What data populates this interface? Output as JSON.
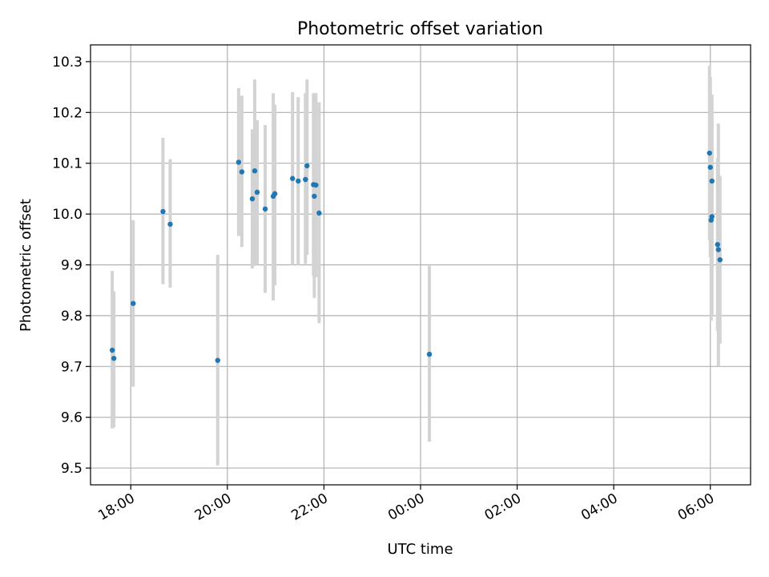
{
  "chart_data": {
    "type": "scatter",
    "title": "Photometric offset variation",
    "xlabel": "UTC time",
    "ylabel": "Photometric offset",
    "x_unit": "time of day (UTC)",
    "x_ticks": [
      "18:00",
      "20:00",
      "22:00",
      "00:00",
      "02:00",
      "04:00",
      "06:00"
    ],
    "y_ticks": [
      "9.5",
      "9.6",
      "9.7",
      "9.8",
      "9.9",
      "10.0",
      "10.1",
      "10.2",
      "10.3"
    ],
    "ylim": [
      9.467,
      10.333
    ],
    "xlim": [
      "17:10",
      "06:50"
    ],
    "grid": true,
    "colors": {
      "marker": "#1f77b4",
      "errorbar": "#d3d3d3",
      "grid": "#b0b0b0",
      "axes": "#000000"
    },
    "points": [
      {
        "x": "17:37",
        "y": 9.732,
        "lo": 9.578,
        "hi": 9.888
      },
      {
        "x": "17:39",
        "y": 9.716,
        "lo": 9.58,
        "hi": 9.848
      },
      {
        "x": "18:03",
        "y": 9.824,
        "lo": 9.66,
        "hi": 9.988
      },
      {
        "x": "18:40",
        "y": 10.005,
        "lo": 9.862,
        "hi": 10.15
      },
      {
        "x": "18:49",
        "y": 9.98,
        "lo": 9.855,
        "hi": 10.108
      },
      {
        "x": "19:48",
        "y": 9.712,
        "lo": 9.505,
        "hi": 9.92
      },
      {
        "x": "20:14",
        "y": 10.102,
        "lo": 9.957,
        "hi": 10.248
      },
      {
        "x": "20:18",
        "y": 10.083,
        "lo": 9.935,
        "hi": 10.233
      },
      {
        "x": "20:31",
        "y": 10.03,
        "lo": 9.893,
        "hi": 10.167
      },
      {
        "x": "20:34",
        "y": 10.085,
        "lo": 9.898,
        "hi": 10.265
      },
      {
        "x": "20:37",
        "y": 10.043,
        "lo": 9.9,
        "hi": 10.185
      },
      {
        "x": "20:47",
        "y": 10.01,
        "lo": 9.845,
        "hi": 10.175
      },
      {
        "x": "20:57",
        "y": 10.035,
        "lo": 9.83,
        "hi": 10.238
      },
      {
        "x": "20:59",
        "y": 10.04,
        "lo": 9.86,
        "hi": 10.215
      },
      {
        "x": "21:21",
        "y": 10.07,
        "lo": 9.9,
        "hi": 10.24
      },
      {
        "x": "21:28",
        "y": 10.065,
        "lo": 9.9,
        "hi": 10.23
      },
      {
        "x": "21:37",
        "y": 10.068,
        "lo": 9.902,
        "hi": 10.238
      },
      {
        "x": "21:39",
        "y": 10.095,
        "lo": 9.92,
        "hi": 10.265
      },
      {
        "x": "21:47",
        "y": 10.058,
        "lo": 9.878,
        "hi": 10.238
      },
      {
        "x": "21:48",
        "y": 10.035,
        "lo": 9.835,
        "hi": 10.237
      },
      {
        "x": "21:50",
        "y": 10.057,
        "lo": 9.876,
        "hi": 10.238
      },
      {
        "x": "21:54",
        "y": 10.002,
        "lo": 9.785,
        "hi": 10.22
      },
      {
        "x": "00:11",
        "y": 9.724,
        "lo": 9.552,
        "hi": 9.898
      },
      {
        "x": "05:59",
        "y": 10.12,
        "lo": 9.948,
        "hi": 10.292
      },
      {
        "x": "06:00",
        "y": 10.092,
        "lo": 9.915,
        "hi": 10.27
      },
      {
        "x": "06:01",
        "y": 9.988,
        "lo": 9.79,
        "hi": 10.185
      },
      {
        "x": "06:02",
        "y": 9.995,
        "lo": 9.8,
        "hi": 10.19
      },
      {
        "x": "06:02",
        "y": 10.065,
        "lo": 9.895,
        "hi": 10.235
      },
      {
        "x": "06:09",
        "y": 9.94,
        "lo": 9.77,
        "hi": 10.11
      },
      {
        "x": "06:10",
        "y": 9.93,
        "lo": 9.7,
        "hi": 10.178
      },
      {
        "x": "06:12",
        "y": 9.91,
        "lo": 9.745,
        "hi": 10.075
      }
    ]
  }
}
